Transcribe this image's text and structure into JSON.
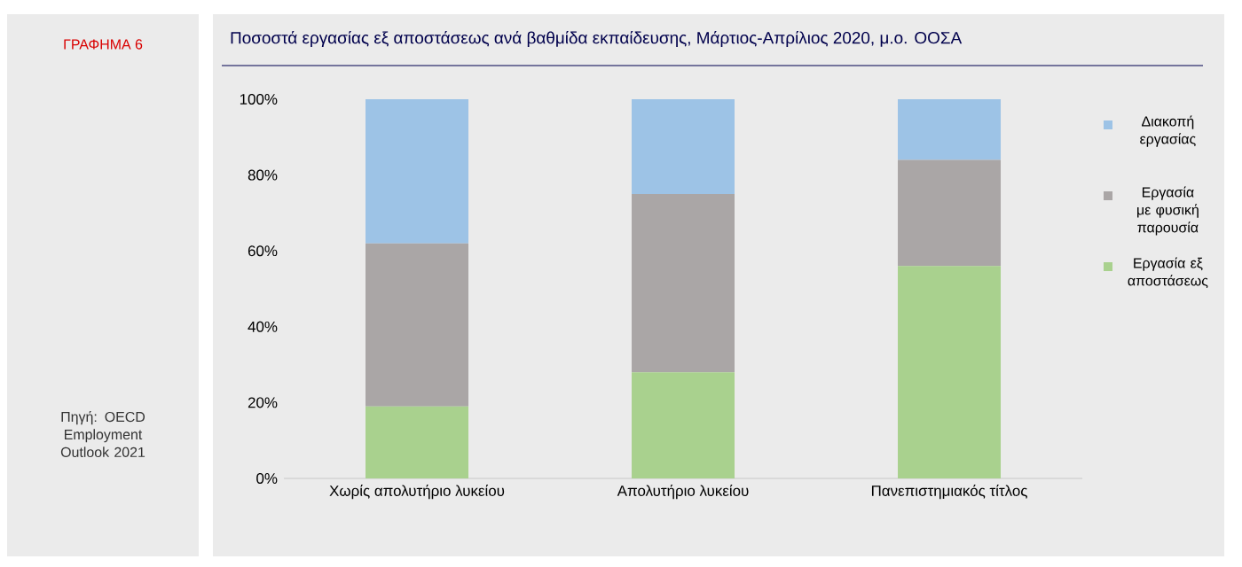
{
  "chart_data": {
    "type": "bar",
    "stacked": true,
    "title": "Ποσοστά εργασίας εξ αποστάσεως ανά βαθμίδα εκπαίδευσης, Μάρτιος-Απρίλιος 2020, μ.ο. ΟΟΣΑ",
    "annotations": [
      "ΓΡΑΦΗΜΑ 6",
      "Πηγή: OECD Employment Outlook 2021"
    ],
    "categories": [
      "Χωρίς απολυτήριο λυκείου",
      "Απολυτήριο λυκείου",
      "Πανεπιστημιακός τίτλος"
    ],
    "series": [
      {
        "name": "Εργασία εξ αποστάσεως",
        "color": "#a9d18e",
        "values": [
          19,
          28,
          56
        ]
      },
      {
        "name": "Εργασία με φυσική παρουσία",
        "color": "#aaa6a6",
        "values": [
          43,
          47,
          28
        ]
      },
      {
        "name": "Διακοπή εργασίας",
        "color": "#9dc3e6",
        "values": [
          38,
          25,
          16
        ]
      }
    ],
    "ylim": [
      0,
      100
    ],
    "yticks": [
      {
        "value": 0,
        "label": "0%"
      },
      {
        "value": 20,
        "label": "20%"
      },
      {
        "value": 40,
        "label": "40%"
      },
      {
        "value": 60,
        "label": "60%"
      },
      {
        "value": 80,
        "label": "80%"
      },
      {
        "value": 100,
        "label": "100%"
      }
    ],
    "legend": "right"
  }
}
